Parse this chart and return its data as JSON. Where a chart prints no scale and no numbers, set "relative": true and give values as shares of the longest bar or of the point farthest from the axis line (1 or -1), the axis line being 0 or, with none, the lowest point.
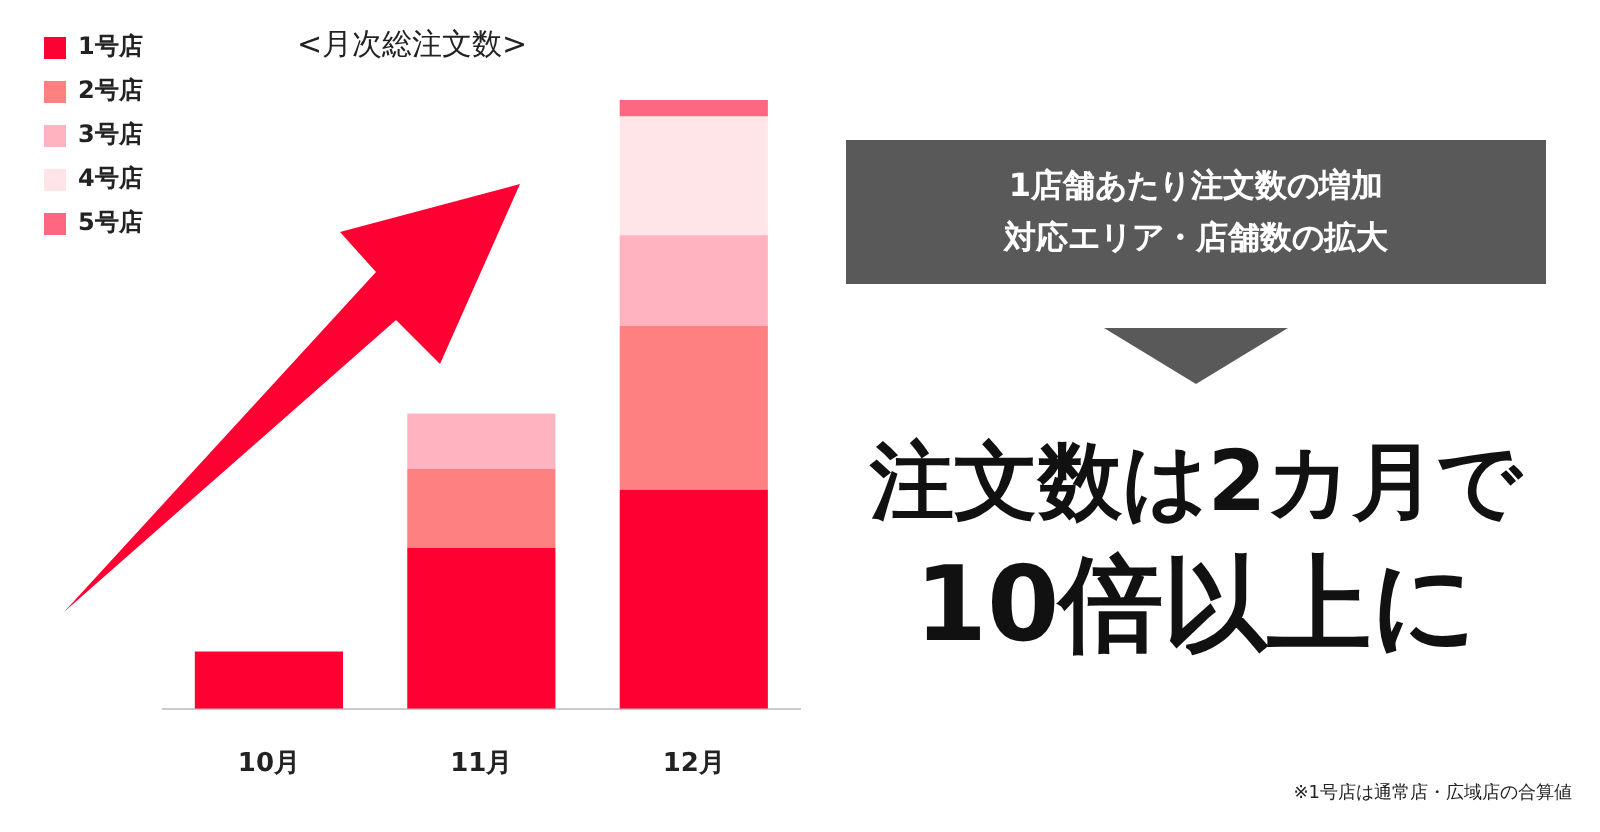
{
  "chart_data": {
    "type": "bar",
    "title": "<月次総注文数>",
    "categories": [
      "10月",
      "11月",
      "12月"
    ],
    "stacked": true,
    "relative": true,
    "legend": "top left",
    "grid": false,
    "series": [
      {
        "name": "1号店",
        "color": "#ff0033",
        "values": [
          0.094,
          0.264,
          0.36
        ]
      },
      {
        "name": "2号店",
        "color": "#ff8080",
        "values": [
          null,
          0.13,
          0.269
        ]
      },
      {
        "name": "3号店",
        "color": "#ffb3c1",
        "values": [
          null,
          0.091,
          0.149
        ]
      },
      {
        "name": "4号店",
        "color": "#ffe4e8",
        "values": [
          null,
          null,
          0.195
        ]
      },
      {
        "name": "5号店",
        "color": "#ff6680",
        "values": [
          null,
          null,
          0.027
        ]
      }
    ],
    "annotations": [
      "1店舗あたり注文数の増加",
      "対応エリア・店舗数の拡大",
      "注文数は2カ月で",
      "10倍以上に",
      "※1号店は通常店・広域店の合算値"
    ]
  }
}
